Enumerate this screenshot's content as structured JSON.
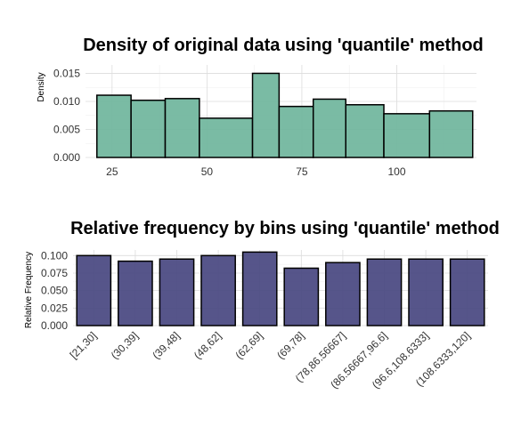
{
  "chart_data": [
    {
      "type": "histogram",
      "title": "Density of original data using 'quantile' method",
      "xlabel": "",
      "ylabel": "Density",
      "fill_color": "#6fb59c",
      "xlim": [
        18,
        121
      ],
      "ylim": [
        0,
        0.0165
      ],
      "x_ticks": [
        25,
        50,
        75,
        100
      ],
      "y_ticks": [
        0.0,
        0.005,
        0.01,
        0.015
      ],
      "y_tick_labels": [
        "0.000",
        "0.005",
        "0.010",
        "0.015"
      ],
      "bins": [
        {
          "start": 21,
          "end": 30,
          "value": 0.0111
        },
        {
          "start": 30,
          "end": 39,
          "value": 0.0102
        },
        {
          "start": 39,
          "end": 48,
          "value": 0.0105
        },
        {
          "start": 48,
          "end": 62,
          "value": 0.007
        },
        {
          "start": 62,
          "end": 69,
          "value": 0.015
        },
        {
          "start": 69,
          "end": 78,
          "value": 0.0091
        },
        {
          "start": 78,
          "end": 86.56667,
          "value": 0.0104
        },
        {
          "start": 86.56667,
          "end": 96.6,
          "value": 0.0094
        },
        {
          "start": 96.6,
          "end": 108.6333,
          "value": 0.0078
        },
        {
          "start": 108.6333,
          "end": 120,
          "value": 0.0083
        }
      ]
    },
    {
      "type": "bar",
      "title": "Relative frequency by bins using 'quantile' method",
      "xlabel": "",
      "ylabel": "Relative Frequency",
      "fill_color": "#484780",
      "ylim": [
        0,
        0.108
      ],
      "y_ticks": [
        0.0,
        0.025,
        0.05,
        0.075,
        0.1
      ],
      "y_tick_labels": [
        "0.000",
        "0.025",
        "0.050",
        "0.075",
        "0.100"
      ],
      "categories": [
        "[21,30]",
        "(30,39]",
        "(39,48]",
        "(48,62]",
        "(62,69]",
        "(69,78]",
        "(78,86.56667]",
        "(86.56667,96.6]",
        "(96.6,108.6333]",
        "(108.6333,120]"
      ],
      "values": [
        0.1,
        0.092,
        0.095,
        0.1,
        0.105,
        0.082,
        0.09,
        0.095,
        0.095,
        0.095
      ]
    }
  ]
}
